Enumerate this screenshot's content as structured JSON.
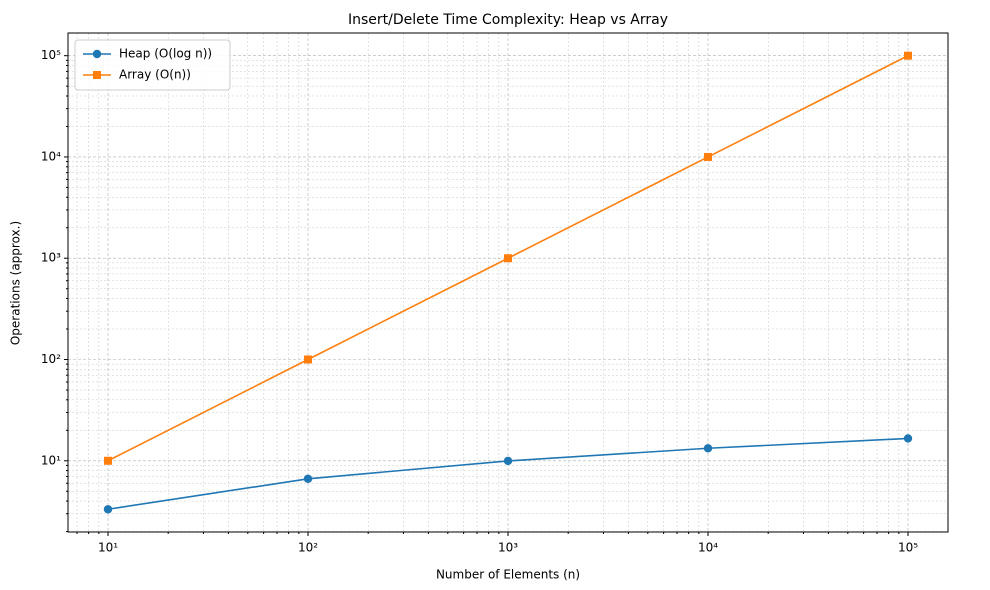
{
  "chart_data": {
    "type": "line",
    "title": "Insert/Delete Time Complexity: Heap vs Array",
    "xlabel": "Number of Elements (n)",
    "ylabel": "Operations (approx.)",
    "x": [
      10,
      100,
      1000,
      10000,
      100000
    ],
    "series": [
      {
        "name": "Heap (O(log n))",
        "color": "#1f77b4",
        "marker": "circle",
        "values": [
          3.32,
          6.64,
          9.97,
          13.29,
          16.61
        ]
      },
      {
        "name": "Array (O(n))",
        "color": "#ff7f0e",
        "marker": "square",
        "values": [
          10,
          100,
          1000,
          10000,
          100000
        ]
      }
    ],
    "xscale": "log",
    "yscale": "log",
    "xlim": [
      6.31,
      158489
    ],
    "ylim": [
      1.98,
      167500
    ],
    "xticks": [
      {
        "value": 10,
        "label": "10¹"
      },
      {
        "value": 100,
        "label": "10²"
      },
      {
        "value": 1000,
        "label": "10³"
      },
      {
        "value": 10000,
        "label": "10⁴"
      },
      {
        "value": 100000,
        "label": "10⁵"
      }
    ],
    "yticks": [
      {
        "value": 10,
        "label": "10¹"
      },
      {
        "value": 100,
        "label": "10²"
      },
      {
        "value": 1000,
        "label": "10³"
      },
      {
        "value": 10000,
        "label": "10⁴"
      },
      {
        "value": 100000,
        "label": "10⁵"
      }
    ],
    "xminorticks": [
      7,
      8,
      9,
      20,
      30,
      40,
      50,
      60,
      70,
      80,
      90,
      200,
      300,
      400,
      500,
      600,
      700,
      800,
      900,
      2000,
      3000,
      4000,
      5000,
      6000,
      7000,
      8000,
      9000,
      20000,
      30000,
      40000,
      50000,
      60000,
      70000,
      80000,
      90000
    ],
    "yminorticks": [
      2,
      3,
      4,
      5,
      6,
      7,
      8,
      9,
      20,
      30,
      40,
      50,
      60,
      70,
      80,
      90,
      200,
      300,
      400,
      500,
      600,
      700,
      800,
      900,
      2000,
      3000,
      4000,
      5000,
      6000,
      7000,
      8000,
      9000,
      20000,
      30000,
      40000,
      50000,
      60000,
      70000,
      80000,
      90000
    ],
    "grid": true,
    "legend": "upper left"
  }
}
